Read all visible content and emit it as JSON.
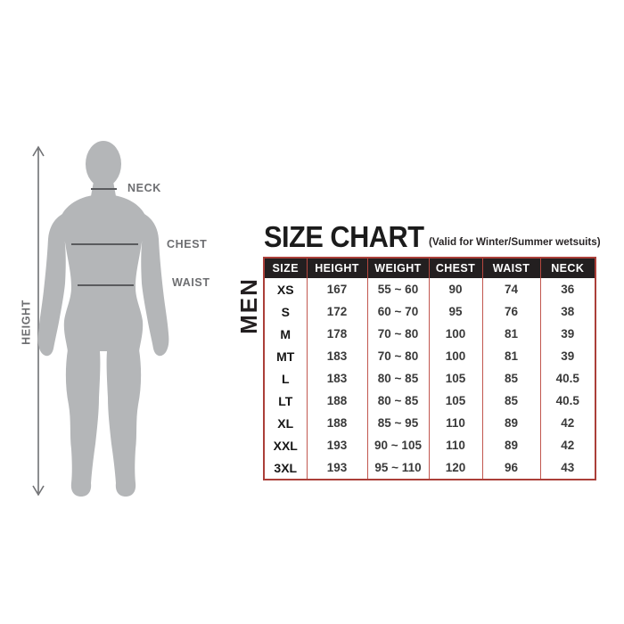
{
  "header": {
    "title": "SIZE CHART",
    "subtitle": "(Valid for Winter/Summer wetsuits)"
  },
  "figure": {
    "height_label": "HEIGHT",
    "neck_label": "NECK",
    "chest_label": "CHEST",
    "waist_label": "WAIST"
  },
  "table": {
    "group_label": "MEN"
  },
  "chart_data": {
    "type": "table",
    "title": "SIZE CHART",
    "subtitle": "(Valid for Winter/Summer wetsuits)",
    "group_label": "MEN",
    "columns": [
      "SIZE",
      "HEIGHT",
      "WEIGHT",
      "CHEST",
      "WAIST",
      "NECK"
    ],
    "rows": [
      [
        "XS",
        "167",
        "55 ~ 60",
        "90",
        "74",
        "36"
      ],
      [
        "S",
        "172",
        "60 ~ 70",
        "95",
        "76",
        "38"
      ],
      [
        "M",
        "178",
        "70 ~ 80",
        "100",
        "81",
        "39"
      ],
      [
        "MT",
        "183",
        "70 ~ 80",
        "100",
        "81",
        "39"
      ],
      [
        "L",
        "183",
        "80 ~ 85",
        "105",
        "85",
        "40.5"
      ],
      [
        "LT",
        "188",
        "80 ~ 85",
        "105",
        "85",
        "40.5"
      ],
      [
        "XL",
        "188",
        "85 ~ 95",
        "110",
        "89",
        "42"
      ],
      [
        "XXL",
        "193",
        "90 ~ 105",
        "110",
        "89",
        "42"
      ],
      [
        "3XL",
        "193",
        "95 ~ 110",
        "120",
        "96",
        "43"
      ]
    ]
  },
  "colors": {
    "table_border_red": "#b5473f",
    "table_header_bg": "#231f20",
    "silhouette_gray": "#b4b6b8",
    "figure_label_gray": "#6d6e71"
  }
}
